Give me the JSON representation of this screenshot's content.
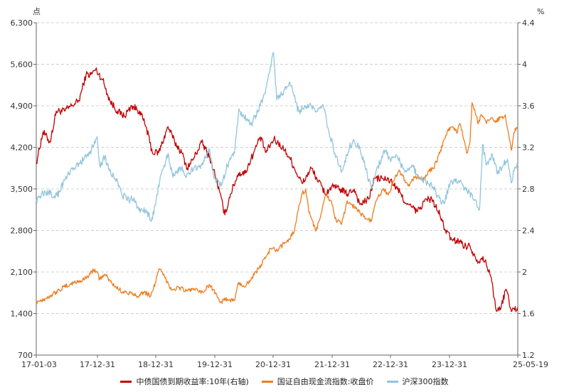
{
  "chart_data": {
    "type": "line",
    "left_axis": {
      "unit": "点",
      "ticks": [
        "6,300",
        "5,600",
        "4,900",
        "4,200",
        "3,500",
        "2,800",
        "2,100",
        "1,400",
        "700"
      ],
      "range": [
        700,
        6300
      ]
    },
    "right_axis": {
      "unit": "%",
      "ticks": [
        "4.4",
        "4",
        "3.6",
        "3.2",
        "2.8",
        "2.4",
        "2",
        "1.6",
        "1.2"
      ],
      "range": [
        1.2,
        4.4
      ]
    },
    "x_axis": {
      "ticks": [
        "17-01-03",
        "17-12-31",
        "18-12-31",
        "19-12-31",
        "20-12-31",
        "21-12-31",
        "22-12-31",
        "23-12-31",
        "25-05-19"
      ],
      "start": "2017-01-03",
      "end": "2025-05-19"
    },
    "grid": "horizontal dashed",
    "legend_placement": "bottom",
    "series": [
      {
        "name": "中债国债到期收益率:10年(右轴)",
        "axis": "right",
        "color": "#c00000",
        "points": [
          [
            "2017-01-03",
            3.05
          ],
          [
            "2017-02-15",
            3.35
          ],
          [
            "2017-04-01",
            3.25
          ],
          [
            "2017-05-10",
            3.55
          ],
          [
            "2017-07-01",
            3.55
          ],
          [
            "2017-08-15",
            3.6
          ],
          [
            "2017-10-01",
            3.65
          ],
          [
            "2017-11-15",
            3.9
          ],
          [
            "2017-12-15",
            3.9
          ],
          [
            "2018-01-15",
            3.95
          ],
          [
            "2018-03-01",
            3.85
          ],
          [
            "2018-04-15",
            3.65
          ],
          [
            "2018-06-01",
            3.55
          ],
          [
            "2018-07-15",
            3.5
          ],
          [
            "2018-09-01",
            3.6
          ],
          [
            "2018-10-20",
            3.55
          ],
          [
            "2018-12-01",
            3.4
          ],
          [
            "2019-01-10",
            3.15
          ],
          [
            "2019-02-20",
            3.15
          ],
          [
            "2019-04-20",
            3.4
          ],
          [
            "2019-06-01",
            3.25
          ],
          [
            "2019-07-15",
            3.15
          ],
          [
            "2019-08-20",
            3.0
          ],
          [
            "2019-10-01",
            3.1
          ],
          [
            "2019-11-20",
            3.25
          ],
          [
            "2020-01-10",
            3.1
          ],
          [
            "2020-02-20",
            2.9
          ],
          [
            "2020-04-15",
            2.55
          ],
          [
            "2020-05-20",
            2.75
          ],
          [
            "2020-07-10",
            2.95
          ],
          [
            "2020-08-20",
            2.95
          ],
          [
            "2020-10-15",
            3.15
          ],
          [
            "2020-11-25",
            3.3
          ],
          [
            "2021-01-01",
            3.15
          ],
          [
            "2021-02-20",
            3.28
          ],
          [
            "2021-04-15",
            3.2
          ],
          [
            "2021-06-01",
            3.1
          ],
          [
            "2021-07-15",
            2.95
          ],
          [
            "2021-08-20",
            2.85
          ],
          [
            "2021-10-15",
            3.0
          ],
          [
            "2021-11-20",
            2.9
          ],
          [
            "2022-01-15",
            2.75
          ],
          [
            "2022-02-20",
            2.82
          ],
          [
            "2022-04-15",
            2.8
          ],
          [
            "2022-06-01",
            2.75
          ],
          [
            "2022-07-15",
            2.8
          ],
          [
            "2022-08-20",
            2.65
          ],
          [
            "2022-10-15",
            2.7
          ],
          [
            "2022-11-20",
            2.9
          ],
          [
            "2023-01-15",
            2.9
          ],
          [
            "2023-03-01",
            2.88
          ],
          [
            "2023-04-15",
            2.8
          ],
          [
            "2023-06-15",
            2.65
          ],
          [
            "2023-07-20",
            2.62
          ],
          [
            "2023-08-20",
            2.58
          ],
          [
            "2023-10-15",
            2.7
          ],
          [
            "2023-11-20",
            2.7
          ],
          [
            "2024-01-10",
            2.55
          ],
          [
            "2024-02-15",
            2.4
          ],
          [
            "2024-04-01",
            2.3
          ],
          [
            "2024-05-15",
            2.3
          ],
          [
            "2024-06-15",
            2.25
          ],
          [
            "2024-07-20",
            2.25
          ],
          [
            "2024-08-20",
            2.15
          ],
          [
            "2024-09-15",
            2.1
          ],
          [
            "2024-10-10",
            2.15
          ],
          [
            "2024-11-05",
            2.05
          ],
          [
            "2024-12-01",
            1.95
          ],
          [
            "2024-12-20",
            1.75
          ],
          [
            "2025-01-06",
            1.62
          ],
          [
            "2025-02-01",
            1.65
          ],
          [
            "2025-03-01",
            1.82
          ],
          [
            "2025-03-15",
            1.8
          ],
          [
            "2025-04-08",
            1.62
          ],
          [
            "2025-05-19",
            1.66
          ]
        ]
      },
      {
        "name": "国证自由现金流指数:收盘价",
        "axis": "left",
        "color": "#ed7d1f",
        "points": [
          [
            "2017-01-03",
            1600
          ],
          [
            "2017-03-01",
            1650
          ],
          [
            "2017-05-01",
            1750
          ],
          [
            "2017-07-01",
            1850
          ],
          [
            "2017-09-01",
            1920
          ],
          [
            "2017-11-01",
            1970
          ],
          [
            "2018-01-10",
            2150
          ],
          [
            "2018-02-10",
            1980
          ],
          [
            "2018-03-15",
            2060
          ],
          [
            "2018-05-01",
            1900
          ],
          [
            "2018-06-15",
            1800
          ],
          [
            "2018-08-01",
            1750
          ],
          [
            "2018-10-01",
            1700
          ],
          [
            "2018-11-15",
            1760
          ],
          [
            "2019-01-01",
            1700
          ],
          [
            "2019-02-25",
            2150
          ],
          [
            "2019-04-01",
            2000
          ],
          [
            "2019-05-15",
            1800
          ],
          [
            "2019-07-01",
            1840
          ],
          [
            "2019-08-15",
            1780
          ],
          [
            "2019-10-01",
            1820
          ],
          [
            "2019-11-15",
            1740
          ],
          [
            "2020-01-10",
            1880
          ],
          [
            "2020-02-15",
            1750
          ],
          [
            "2020-03-20",
            1600
          ],
          [
            "2020-05-01",
            1640
          ],
          [
            "2020-06-15",
            1620
          ],
          [
            "2020-07-10",
            1920
          ],
          [
            "2020-08-15",
            1850
          ],
          [
            "2020-10-01",
            2000
          ],
          [
            "2020-11-15",
            2150
          ],
          [
            "2020-12-31",
            2350
          ],
          [
            "2021-02-01",
            2500
          ],
          [
            "2021-03-15",
            2450
          ],
          [
            "2021-04-15",
            2550
          ],
          [
            "2021-05-25",
            2650
          ],
          [
            "2021-07-01",
            2800
          ],
          [
            "2021-07-20",
            3100
          ],
          [
            "2021-08-15",
            3400
          ],
          [
            "2021-09-10",
            3500
          ],
          [
            "2021-10-01",
            3100
          ],
          [
            "2021-11-15",
            2800
          ],
          [
            "2021-12-20",
            3100
          ],
          [
            "2022-01-15",
            3400
          ],
          [
            "2022-02-20",
            3300
          ],
          [
            "2022-03-15",
            3000
          ],
          [
            "2022-04-25",
            2900
          ],
          [
            "2022-06-01",
            3300
          ],
          [
            "2022-07-15",
            3200
          ],
          [
            "2022-08-20",
            3100
          ],
          [
            "2022-10-01",
            3000
          ],
          [
            "2022-10-31",
            2950
          ],
          [
            "2022-12-01",
            3300
          ],
          [
            "2023-01-15",
            3500
          ],
          [
            "2023-02-15",
            3400
          ],
          [
            "2023-04-01",
            3700
          ],
          [
            "2023-05-01",
            3800
          ],
          [
            "2023-06-01",
            3650
          ],
          [
            "2023-07-01",
            3550
          ],
          [
            "2023-08-01",
            3700
          ],
          [
            "2023-09-01",
            3700
          ],
          [
            "2023-10-01",
            3650
          ],
          [
            "2023-11-01",
            3800
          ],
          [
            "2023-12-01",
            3850
          ],
          [
            "2024-01-10",
            4100
          ],
          [
            "2024-02-10",
            4350
          ],
          [
            "2024-03-01",
            4500
          ],
          [
            "2024-04-01",
            4550
          ],
          [
            "2024-05-01",
            4450
          ],
          [
            "2024-05-15",
            4600
          ],
          [
            "2024-06-15",
            4300
          ],
          [
            "2024-07-01",
            4100
          ],
          [
            "2024-07-20",
            4300
          ],
          [
            "2024-08-01",
            4950
          ],
          [
            "2024-09-10",
            4600
          ],
          [
            "2024-10-01",
            4750
          ],
          [
            "2024-11-01",
            4600
          ],
          [
            "2024-12-01",
            4700
          ],
          [
            "2025-01-01",
            4650
          ],
          [
            "2025-02-01",
            4700
          ],
          [
            "2025-03-01",
            4750
          ],
          [
            "2025-04-08",
            4150
          ],
          [
            "2025-04-25",
            4450
          ],
          [
            "2025-05-19",
            4550
          ]
        ]
      },
      {
        "name": "沪深300指数",
        "axis": "left",
        "color": "#92c5dc",
        "points": [
          [
            "2017-01-03",
            3320
          ],
          [
            "2017-03-01",
            3450
          ],
          [
            "2017-05-15",
            3380
          ],
          [
            "2017-07-01",
            3650
          ],
          [
            "2017-09-01",
            3850
          ],
          [
            "2017-11-01",
            4000
          ],
          [
            "2017-11-30",
            4050
          ],
          [
            "2018-01-24",
            4380
          ],
          [
            "2018-02-10",
            3900
          ],
          [
            "2018-03-15",
            4050
          ],
          [
            "2018-04-15",
            3800
          ],
          [
            "2018-06-01",
            3650
          ],
          [
            "2018-07-01",
            3400
          ],
          [
            "2018-08-15",
            3300
          ],
          [
            "2018-09-15",
            3350
          ],
          [
            "2018-10-25",
            3100
          ],
          [
            "2018-12-01",
            3150
          ],
          [
            "2019-01-03",
            2950
          ],
          [
            "2019-02-01",
            3250
          ],
          [
            "2019-03-01",
            3700
          ],
          [
            "2019-04-20",
            4100
          ],
          [
            "2019-05-20",
            3700
          ],
          [
            "2019-06-15",
            3800
          ],
          [
            "2019-07-15",
            3850
          ],
          [
            "2019-08-15",
            3700
          ],
          [
            "2019-10-01",
            3850
          ],
          [
            "2019-11-15",
            3900
          ],
          [
            "2020-01-10",
            4150
          ],
          [
            "2020-02-03",
            3700
          ],
          [
            "2020-03-23",
            3550
          ],
          [
            "2020-05-01",
            3900
          ],
          [
            "2020-06-15",
            4100
          ],
          [
            "2020-07-13",
            4850
          ],
          [
            "2020-08-15",
            4700
          ],
          [
            "2020-10-01",
            4600
          ],
          [
            "2020-11-25",
            4900
          ],
          [
            "2020-12-31",
            5200
          ],
          [
            "2021-02-18",
            5800
          ],
          [
            "2021-03-10",
            5000
          ],
          [
            "2021-04-15",
            5100
          ],
          [
            "2021-06-01",
            5300
          ],
          [
            "2021-07-28",
            4800
          ],
          [
            "2021-08-20",
            4850
          ],
          [
            "2021-10-01",
            4900
          ],
          [
            "2021-11-15",
            4800
          ],
          [
            "2021-12-31",
            4900
          ],
          [
            "2022-02-01",
            4500
          ],
          [
            "2022-03-15",
            4100
          ],
          [
            "2022-04-27",
            3800
          ],
          [
            "2022-06-15",
            4200
          ],
          [
            "2022-07-15",
            4300
          ],
          [
            "2022-08-20",
            4200
          ],
          [
            "2022-10-31",
            3500
          ],
          [
            "2022-12-01",
            3800
          ],
          [
            "2023-01-27",
            4150
          ],
          [
            "2023-03-01",
            4000
          ],
          [
            "2023-04-15",
            4050
          ],
          [
            "2023-05-30",
            3800
          ],
          [
            "2023-07-15",
            3900
          ],
          [
            "2023-08-31",
            3700
          ],
          [
            "2023-10-01",
            3650
          ],
          [
            "2023-11-20",
            3550
          ],
          [
            "2024-01-15",
            3300
          ],
          [
            "2024-02-05",
            3250
          ],
          [
            "2024-03-15",
            3600
          ],
          [
            "2024-05-20",
            3650
          ],
          [
            "2024-06-15",
            3500
          ],
          [
            "2024-07-15",
            3450
          ],
          [
            "2024-08-15",
            3300
          ],
          [
            "2024-09-18",
            3150
          ],
          [
            "2024-10-08",
            4250
          ],
          [
            "2024-11-01",
            3900
          ],
          [
            "2024-12-10",
            4050
          ],
          [
            "2025-01-10",
            3750
          ],
          [
            "2025-02-15",
            3900
          ],
          [
            "2025-03-15",
            4000
          ],
          [
            "2025-04-08",
            3600
          ],
          [
            "2025-04-25",
            3800
          ],
          [
            "2025-05-19",
            3900
          ]
        ]
      }
    ]
  }
}
